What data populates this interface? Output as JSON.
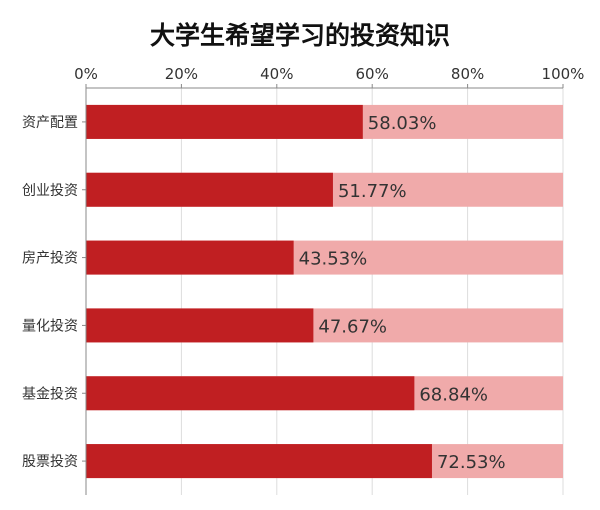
{
  "chart_data": {
    "type": "bar",
    "orientation": "horizontal",
    "stacked_remainder_to": 100,
    "title": "大学生希望学习的投资知识",
    "xlabel": "",
    "ylabel": "",
    "xlim": [
      0,
      100
    ],
    "x_ticks": [
      "0%",
      "20%",
      "40%",
      "60%",
      "80%",
      "100%"
    ],
    "x_axis_position": "top",
    "grid": true,
    "categories": [
      "资产配置",
      "创业投资",
      "房产投资",
      "量化投资",
      "基金投资",
      "股票投资"
    ],
    "values": [
      58.03,
      51.77,
      43.53,
      47.67,
      68.84,
      72.53
    ],
    "data_labels": [
      "58.03%",
      "51.77%",
      "43.53%",
      "47.67%",
      "68.84%",
      "72.53%"
    ],
    "colors": {
      "value": "#c01f22",
      "remainder": "#f0aaaa",
      "grid": "#dddddd",
      "axis": "#888888",
      "text": "#333333"
    }
  }
}
